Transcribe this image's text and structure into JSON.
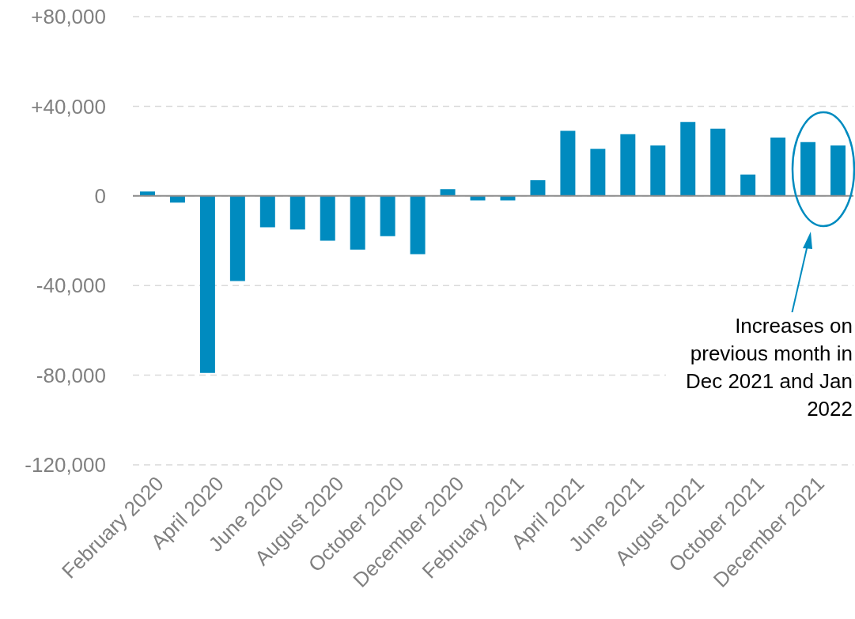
{
  "chart_data": {
    "type": "bar",
    "categories": [
      "February 2020",
      null,
      "April 2020",
      null,
      "June 2020",
      null,
      "August 2020",
      null,
      "October 2020",
      null,
      "December 2020",
      null,
      "February 2021",
      null,
      "April 2021",
      null,
      "June 2021",
      null,
      "August 2021",
      null,
      "October 2021",
      null,
      "December 2021",
      null
    ],
    "values": [
      2000,
      -3000,
      -79000,
      -38000,
      -14000,
      -15000,
      -20000,
      -24000,
      -18000,
      -26000,
      3000,
      -2000,
      -2000,
      7000,
      29000,
      21000,
      27500,
      22500,
      33000,
      30000,
      9500,
      26000,
      24000,
      22500
    ],
    "color": "#008bbf",
    "ylim": [
      -120000,
      80000
    ],
    "yticks": [
      {
        "value": -120000,
        "label": "-120,000"
      },
      {
        "value": -80000,
        "label": "-80,000"
      },
      {
        "value": -40000,
        "label": "-40,000"
      },
      0,
      {
        "value": 40000,
        "label": "+40,000"
      },
      {
        "value": 80000,
        "label": "+80,000"
      }
    ],
    "grid": "y",
    "annotations": [
      "Increases on previous month in Dec 2021 and Jan 2022"
    ]
  }
}
